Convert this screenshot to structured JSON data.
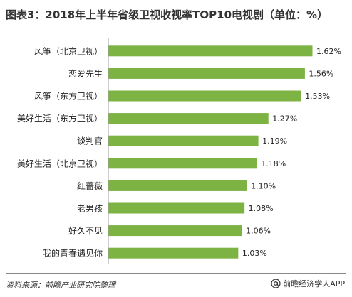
{
  "title": "图表3：2018年上半年省级卫视收视率TOP10电视剧（单位：%）",
  "chart_data": {
    "type": "bar",
    "orientation": "horizontal",
    "categories": [
      "风筝（北京卫视）",
      "恋爱先生",
      "风筝（东方卫视）",
      "美好生活（东方卫视）",
      "谈判官",
      "美好生活（北京卫视）",
      "红蔷薇",
      "老男孩",
      "好久不见",
      "我的青春遇见你"
    ],
    "values": [
      1.62,
      1.56,
      1.53,
      1.27,
      1.19,
      1.18,
      1.1,
      1.08,
      1.06,
      1.03
    ],
    "value_labels": [
      "1.62%",
      "1.56%",
      "1.53%",
      "1.27%",
      "1.19%",
      "1.18%",
      "1.10%",
      "1.08%",
      "1.06%",
      "1.03%"
    ],
    "xlim": [
      0,
      1.62
    ],
    "bar_color": "#7cb342",
    "grid": false,
    "legend": "none"
  },
  "footer": {
    "source": "资料来源：前瞻产业研究院整理",
    "credit": "前瞻经济学人APP"
  }
}
